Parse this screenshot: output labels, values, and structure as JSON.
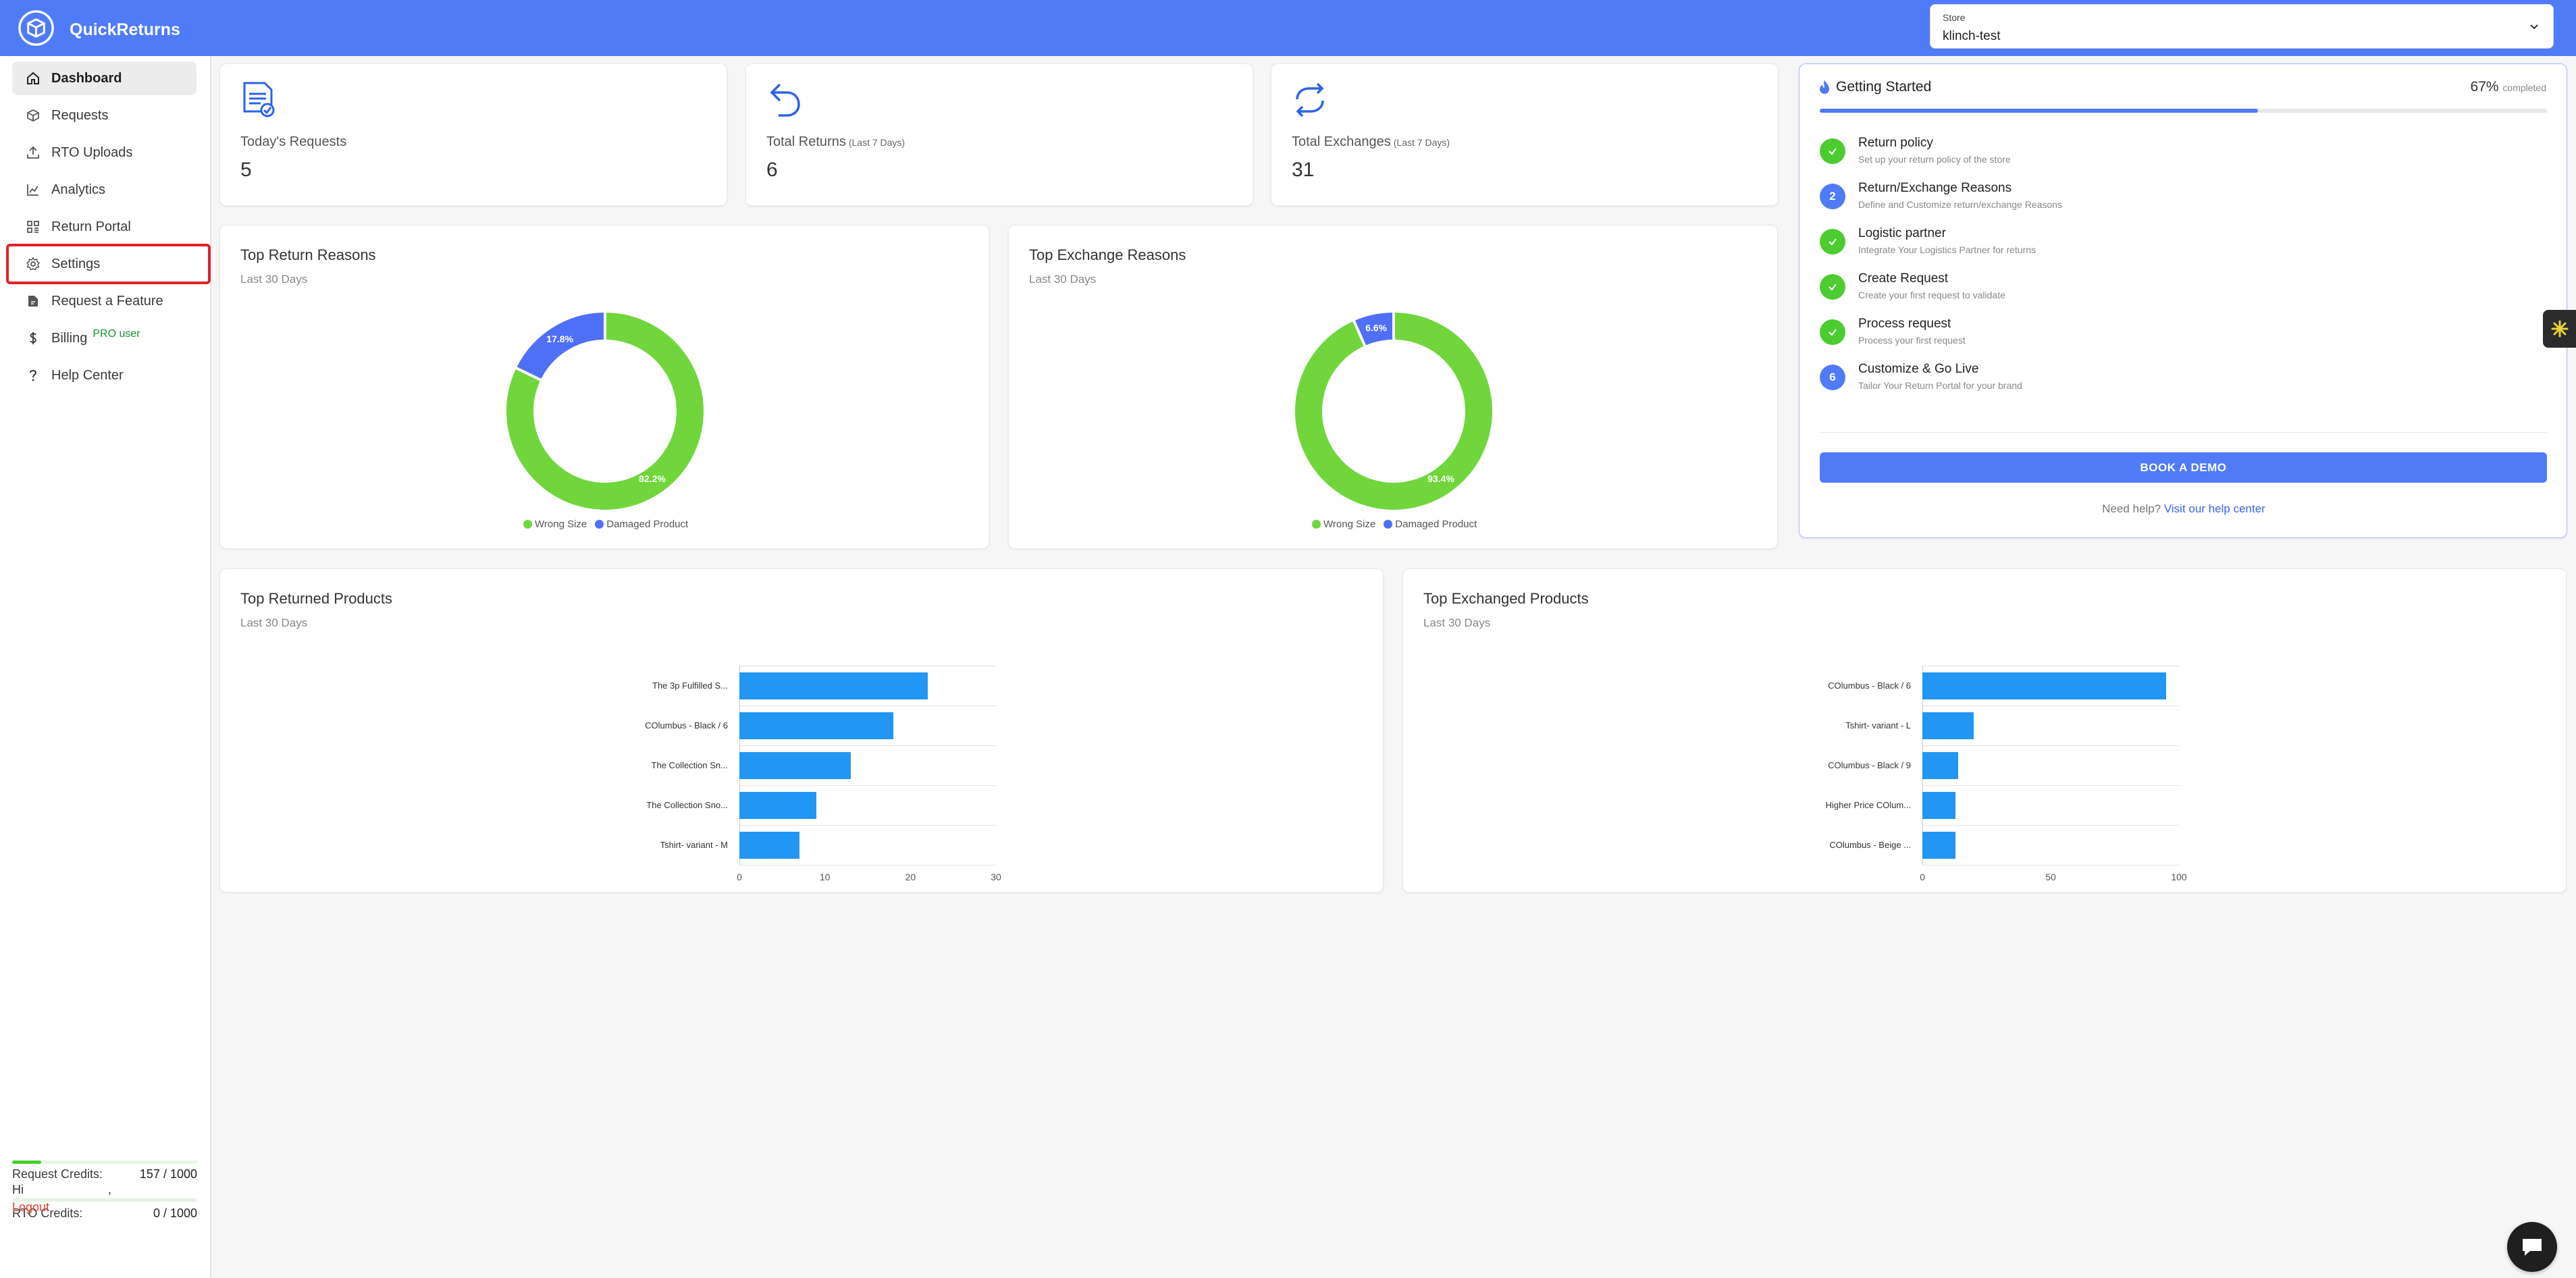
{
  "header": {
    "brand_name": "QuickReturns",
    "store_label": "Store",
    "store_value": "klinch-test"
  },
  "sidebar": {
    "items": [
      {
        "label": "Dashboard",
        "icon": "home-icon"
      },
      {
        "label": "Requests",
        "icon": "box-icon"
      },
      {
        "label": "RTO Uploads",
        "icon": "upload-icon"
      },
      {
        "label": "Analytics",
        "icon": "chart-line-icon"
      },
      {
        "label": "Return Portal",
        "icon": "grid-icon"
      },
      {
        "label": "Settings",
        "icon": "gear-icon"
      },
      {
        "label": "Request a Feature",
        "icon": "feature-icon"
      },
      {
        "label": "Billing",
        "icon": "dollar-icon"
      },
      {
        "label": "Help Center",
        "icon": "question-icon"
      }
    ],
    "billing_badge": "PRO user",
    "request_credits": {
      "label": "Request Credits:",
      "value": "157 / 1000",
      "used": 157,
      "total": 1000
    },
    "rto_credits": {
      "label": "RTO Credits:",
      "value": "0 / 1000",
      "used": 0,
      "total": 1000
    },
    "greeting": "Hi",
    "greeting_name": ",",
    "logout_label": "Logout"
  },
  "stats": [
    {
      "label": "Today's Requests",
      "sub": "",
      "value": "5",
      "icon": "document-check-icon"
    },
    {
      "label": "Total Returns",
      "sub": "(Last 7 Days)",
      "value": "6",
      "icon": "return-arrow-icon"
    },
    {
      "label": "Total Exchanges",
      "sub": "(Last 7 Days)",
      "value": "31",
      "icon": "exchange-arrows-icon"
    }
  ],
  "return_reasons": {
    "title": "Top Return Reasons",
    "subtitle": "Last 30 Days"
  },
  "exchange_reasons": {
    "title": "Top Exchange Reasons",
    "subtitle": "Last 30 Days"
  },
  "returned_products": {
    "title": "Top Returned Products",
    "subtitle": "Last 30 Days"
  },
  "exchanged_products": {
    "title": "Top Exchanged Products",
    "subtitle": "Last 30 Days"
  },
  "getting_started": {
    "title": "Getting Started",
    "percent": "67%",
    "percent_suffix": "completed",
    "progress": 0.67,
    "steps": [
      {
        "marker": "",
        "status": "done",
        "title": "Return policy",
        "desc": "Set up your return policy of the store"
      },
      {
        "marker": "2",
        "status": "todo",
        "title": "Return/Exchange Reasons",
        "desc": "Define and Customize return/exchange Reasons"
      },
      {
        "marker": "",
        "status": "done",
        "title": "Logistic partner",
        "desc": "Integrate Your Logistics Partner for returns"
      },
      {
        "marker": "",
        "status": "done",
        "title": "Create Request",
        "desc": "Create your first request to validate"
      },
      {
        "marker": "",
        "status": "done",
        "title": "Process request",
        "desc": "Process your first request"
      },
      {
        "marker": "6",
        "status": "todo",
        "title": "Customize & Go Live",
        "desc": "Tailor Your Return Portal for your brand"
      }
    ],
    "demo_button": "BOOK A DEMO",
    "help_text": "Need help?",
    "help_link": "Visit our help center"
  },
  "colors": {
    "brand": "#4f7bf7",
    "green": "#70d63c",
    "blue": "#4f6ff7",
    "bar": "#2196f3",
    "highlight": "#e0212d"
  },
  "chart_data": [
    {
      "type": "pie",
      "title": "Top Return Reasons",
      "subtitle": "Last 30 Days",
      "categories": [
        "Wrong Size",
        "Damaged Product"
      ],
      "values": [
        82.2,
        17.8
      ],
      "labels": [
        "82.2%",
        "17.8%"
      ],
      "colors": [
        "#70d63c",
        "#4f6ff7"
      ],
      "legend": "bottom"
    },
    {
      "type": "pie",
      "title": "Top Exchange Reasons",
      "subtitle": "Last 30 Days",
      "categories": [
        "Wrong Size",
        "Damaged Product"
      ],
      "values": [
        93.4,
        6.6
      ],
      "labels": [
        "93.4%",
        "6.6%"
      ],
      "colors": [
        "#70d63c",
        "#4f6ff7"
      ],
      "legend": "bottom"
    },
    {
      "type": "bar",
      "orientation": "horizontal",
      "title": "Top Returned Products",
      "subtitle": "Last 30 Days",
      "categories": [
        "The 3p Fulfilled S...",
        "COlumbus - Black / 6",
        "The Collection Sn...",
        "The Collection Sno...",
        "Tshirt- variant - M"
      ],
      "values": [
        22,
        18,
        13,
        9,
        7
      ],
      "xlim": [
        0,
        30
      ],
      "xticks": [
        "0",
        "10",
        "20",
        "30"
      ],
      "grid": true
    },
    {
      "type": "bar",
      "orientation": "horizontal",
      "title": "Top Exchanged Products",
      "subtitle": "Last 30 Days",
      "categories": [
        "COlumbus - Black / 6",
        "Tshirt- variant - L",
        "COlumbus - Black / 9",
        "Higher Price COlum...",
        "COlumbus - Beige ..."
      ],
      "values": [
        95,
        20,
        14,
        13,
        13
      ],
      "xlim": [
        0,
        100
      ],
      "xticks": [
        "0",
        "50",
        "100"
      ],
      "grid": true
    }
  ]
}
